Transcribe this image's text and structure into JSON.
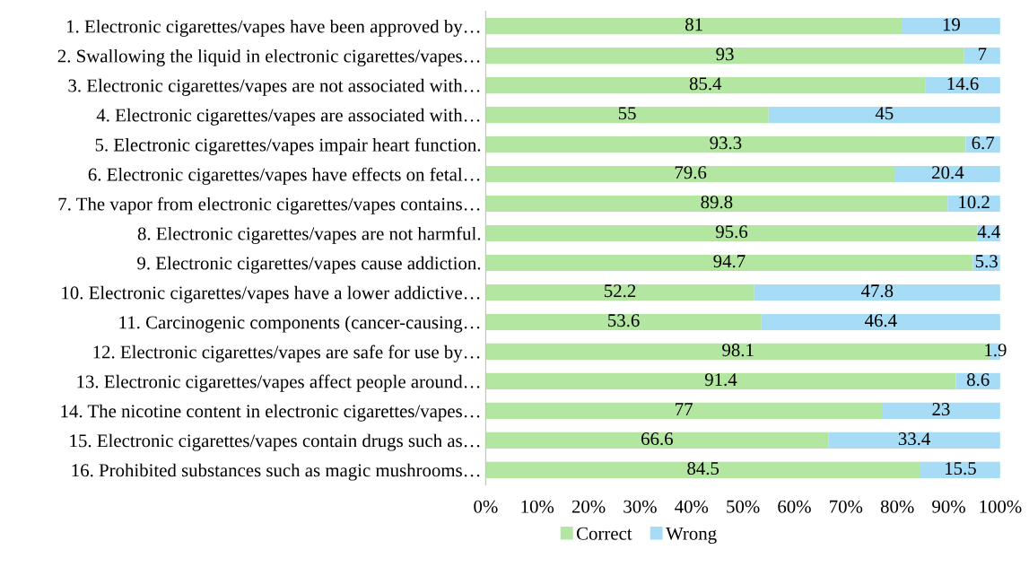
{
  "chart_data": {
    "type": "bar",
    "orientation": "horizontal",
    "stacked": true,
    "data_labels": true,
    "legend": "bottom",
    "grid": false,
    "categories": [
      "1. Electronic cigarettes/vapes have been approved by…",
      "2. Swallowing the liquid in electronic cigarettes/vapes…",
      "3. Electronic cigarettes/vapes are not associated with…",
      "4. Electronic cigarettes/vapes are associated with…",
      "5. Electronic cigarettes/vapes impair heart function.",
      "6. Electronic cigarettes/vapes have effects on fetal…",
      "7. The vapor from electronic cigarettes/vapes contains…",
      "8. Electronic cigarettes/vapes are not harmful.",
      "9. Electronic cigarettes/vapes cause addiction.",
      "10. Electronic cigarettes/vapes have a lower addictive…",
      "11. Carcinogenic components (cancer-causing…",
      "12. Electronic cigarettes/vapes are safe for use by…",
      "13. Electronic cigarettes/vapes affect people around…",
      "14. The nicotine content in electronic cigarettes/vapes…",
      "15. Electronic cigarettes/vapes contain drugs such as…",
      "16. Prohibited substances such as magic mushrooms…"
    ],
    "series": [
      {
        "name": "Correct",
        "color": "#b3e6a1",
        "values": [
          81,
          93,
          85.4,
          55,
          93.3,
          79.6,
          89.8,
          95.6,
          94.7,
          52.2,
          53.6,
          98.1,
          91.4,
          77,
          66.6,
          84.5
        ]
      },
      {
        "name": "Wrong",
        "color": "#a6dcf5",
        "values": [
          19,
          7,
          14.6,
          45,
          6.7,
          20.4,
          10.2,
          4.4,
          5.3,
          47.8,
          46.4,
          1.9,
          8.6,
          23,
          33.4,
          15.5
        ]
      }
    ],
    "xlim": [
      0,
      100
    ],
    "xticks": [
      {
        "value": 0,
        "label": "0%"
      },
      {
        "value": 10,
        "label": "10%"
      },
      {
        "value": 20,
        "label": "20%"
      },
      {
        "value": 30,
        "label": "30%"
      },
      {
        "value": 40,
        "label": "40%"
      },
      {
        "value": 50,
        "label": "50%"
      },
      {
        "value": 60,
        "label": "60%"
      },
      {
        "value": 70,
        "label": "70%"
      },
      {
        "value": 80,
        "label": "80%"
      },
      {
        "value": 90,
        "label": "90%"
      },
      {
        "value": 100,
        "label": "100%"
      }
    ]
  }
}
